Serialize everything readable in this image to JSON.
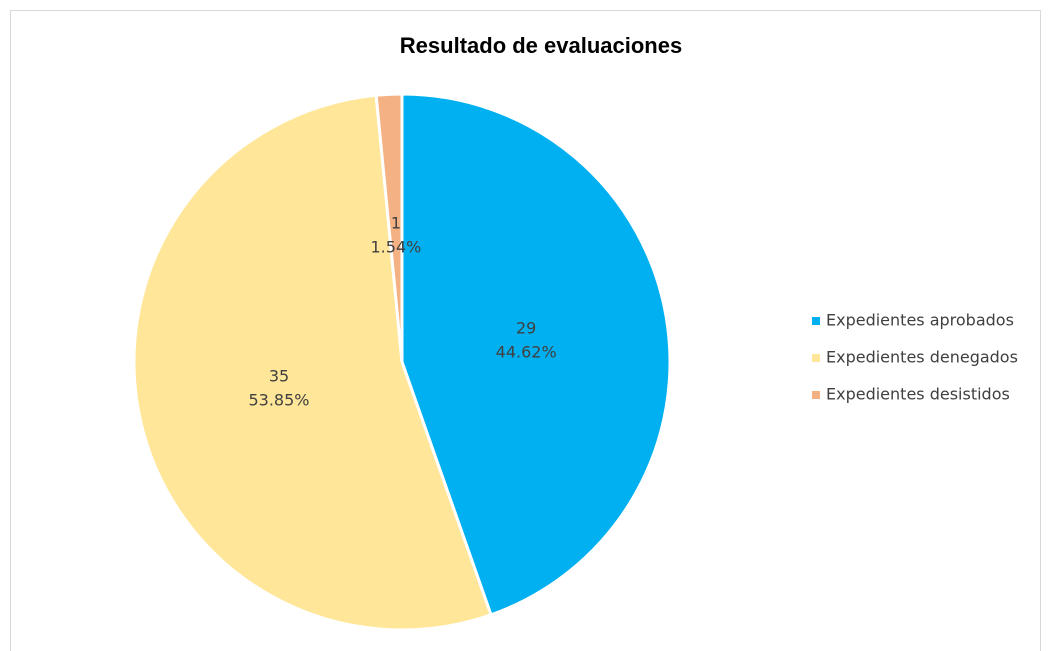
{
  "chart_data": {
    "type": "pie",
    "title": "Resultado de evaluaciones",
    "categories": [
      "Expedientes aprobados",
      "Expedientes denegados",
      "Expedientes desistidos"
    ],
    "values": [
      29,
      35,
      1
    ],
    "percent_labels": [
      "44.62%",
      "53.85%",
      "1.54%"
    ],
    "colors": [
      "#00b0f0",
      "#ffe699",
      "#f4b183"
    ],
    "legend": "right"
  }
}
